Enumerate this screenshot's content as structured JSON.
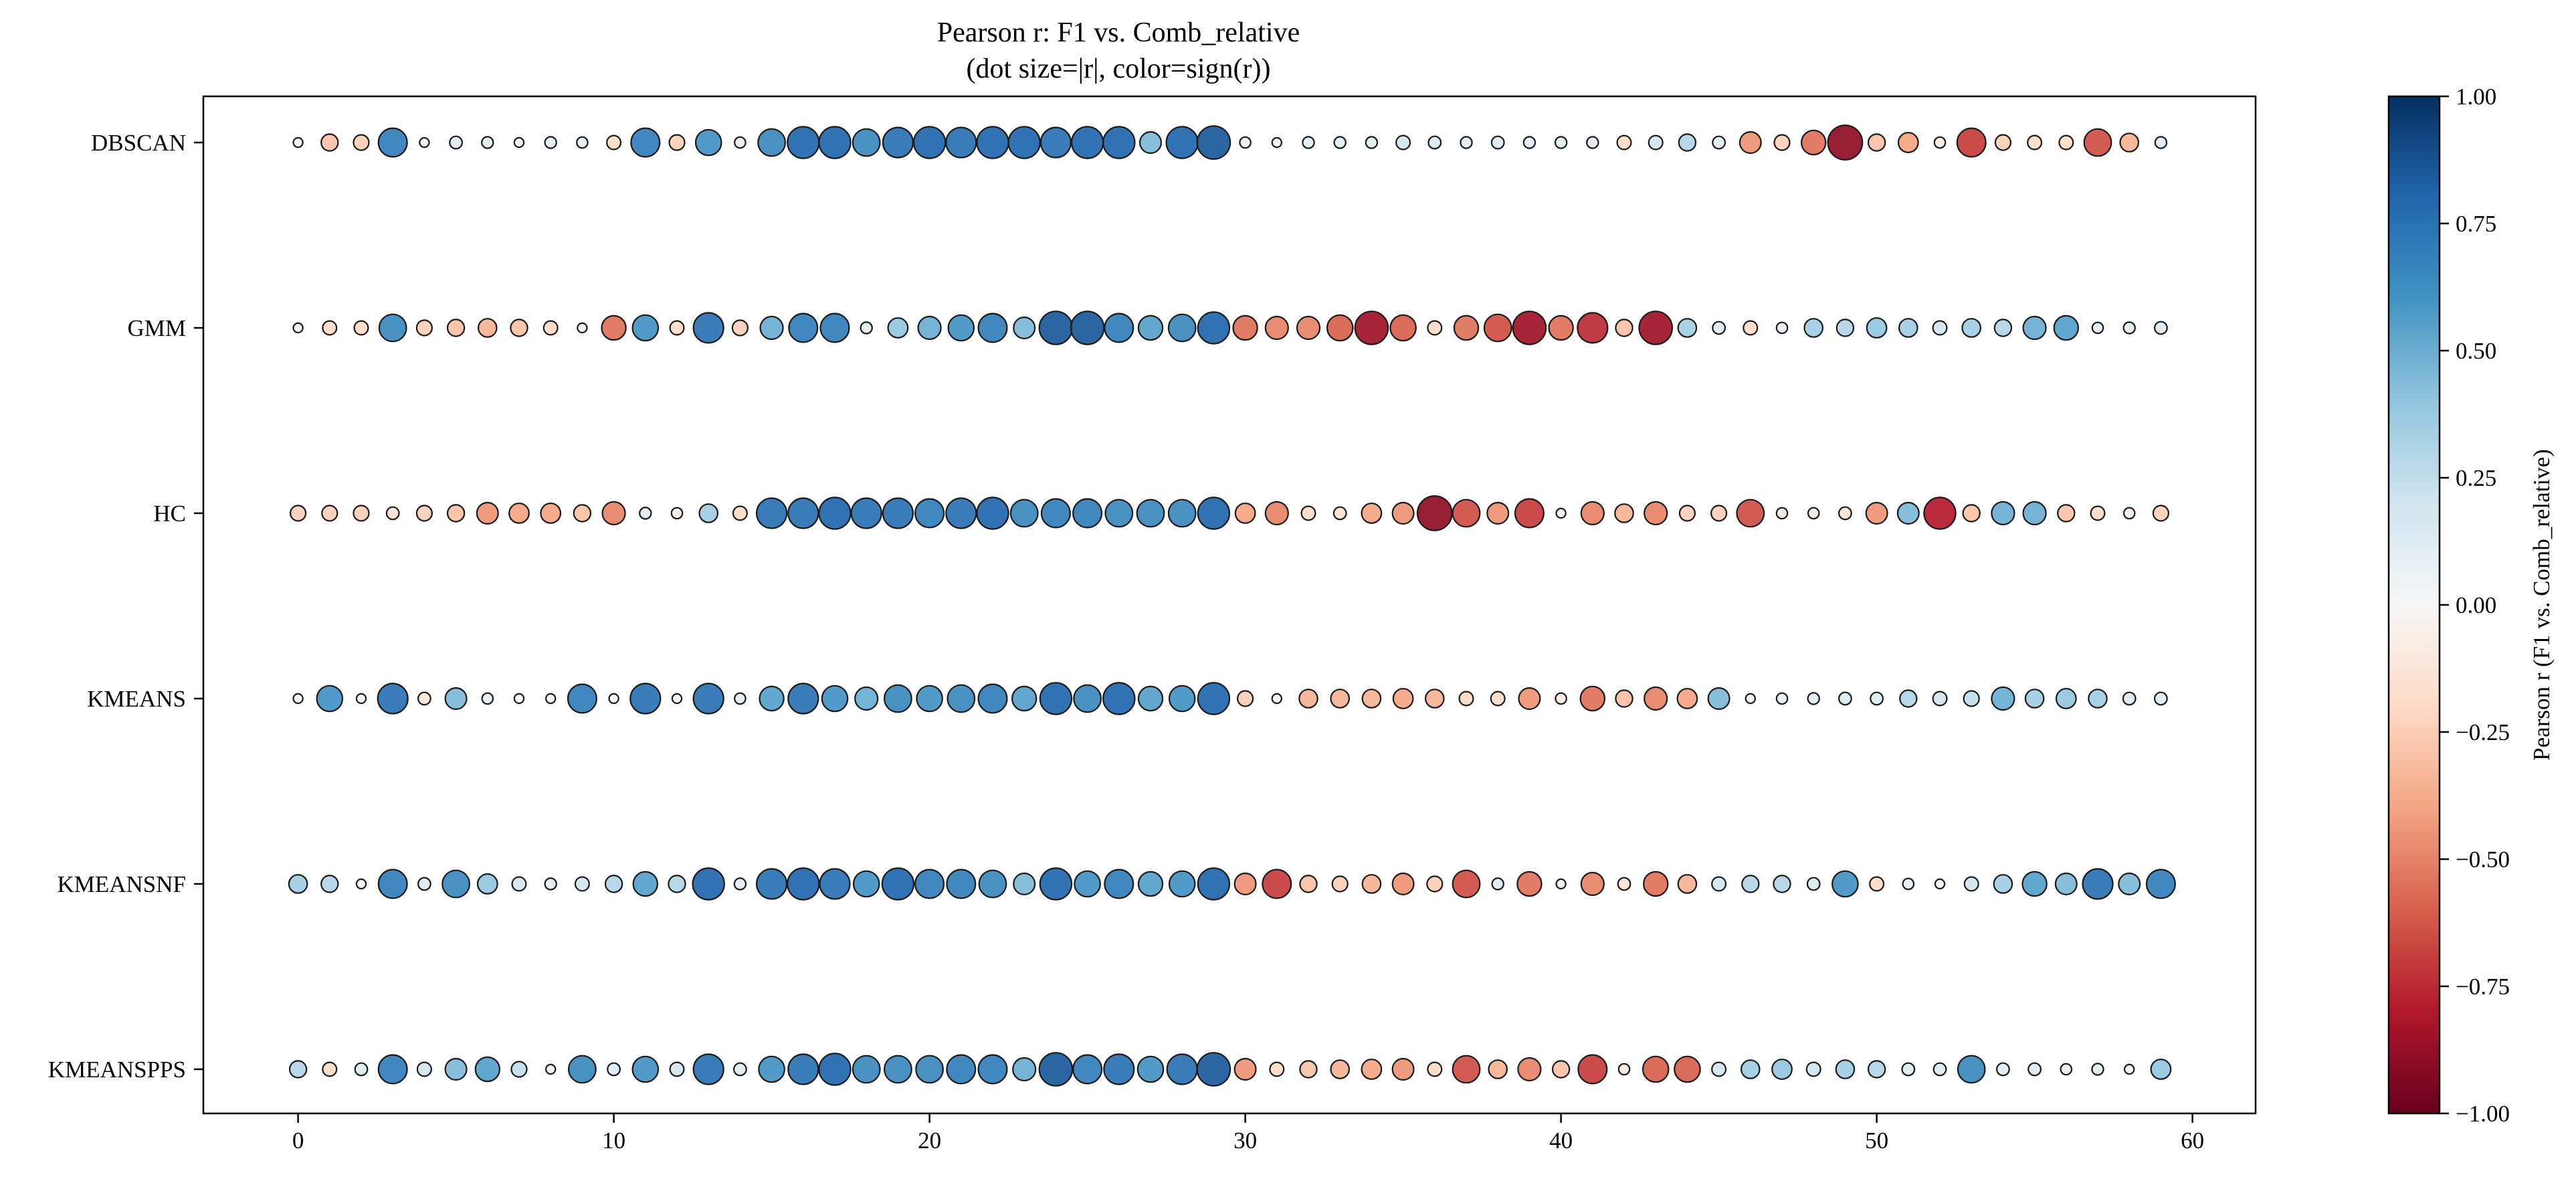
{
  "chart_data": {
    "type": "scatter",
    "title": "Pearson r: F1 vs. Comb_relative",
    "subtitle": "(dot size=|r|, color=sign(r))",
    "x_ticks": [
      0,
      10,
      20,
      30,
      40,
      50,
      60
    ],
    "xlim": [
      -3,
      62
    ],
    "categories": [
      "DBSCAN",
      "GMM",
      "HC",
      "KMEANS",
      "KMEANSNF",
      "KMEANSPPS"
    ],
    "x": [
      0,
      1,
      2,
      3,
      4,
      5,
      6,
      7,
      8,
      9,
      10,
      11,
      12,
      13,
      14,
      15,
      16,
      17,
      18,
      19,
      20,
      21,
      22,
      23,
      24,
      25,
      26,
      27,
      28,
      29,
      30,
      31,
      32,
      33,
      34,
      35,
      36,
      37,
      38,
      39,
      40,
      41,
      42,
      43,
      44,
      45,
      46,
      47,
      48,
      49,
      50,
      51,
      52,
      53,
      54,
      55,
      56,
      57,
      58,
      59
    ],
    "series": [
      {
        "name": "DBSCAN",
        "values": [
          0.05,
          -0.3,
          -0.25,
          0.7,
          0.05,
          0.15,
          0.12,
          0.05,
          0.12,
          0.1,
          -0.2,
          0.7,
          -0.25,
          0.6,
          0.1,
          0.65,
          0.8,
          0.8,
          0.65,
          0.75,
          0.8,
          0.75,
          0.8,
          0.8,
          0.75,
          0.8,
          0.8,
          0.45,
          0.8,
          0.85,
          0.1,
          0.05,
          0.12,
          0.12,
          0.12,
          0.2,
          0.15,
          0.12,
          0.15,
          0.12,
          0.12,
          0.12,
          -0.2,
          0.2,
          0.3,
          0.15,
          -0.45,
          -0.25,
          -0.55,
          -0.9,
          -0.3,
          -0.4,
          -0.1,
          -0.7,
          -0.25,
          -0.2,
          -0.2,
          -0.65,
          -0.35,
          0.12
        ]
      },
      {
        "name": "GMM",
        "values": [
          0.05,
          -0.2,
          -0.2,
          0.65,
          -0.25,
          -0.3,
          -0.35,
          -0.3,
          -0.2,
          0.05,
          -0.55,
          0.6,
          -0.2,
          0.75,
          -0.25,
          0.5,
          0.7,
          0.7,
          0.12,
          0.4,
          0.5,
          0.6,
          0.7,
          0.45,
          0.85,
          0.85,
          0.7,
          0.55,
          0.65,
          0.8,
          -0.55,
          -0.5,
          -0.5,
          -0.6,
          -0.85,
          -0.6,
          -0.2,
          -0.55,
          -0.65,
          -0.85,
          -0.55,
          -0.75,
          -0.3,
          -0.85,
          0.35,
          0.15,
          -0.2,
          0.1,
          0.35,
          0.3,
          0.4,
          0.35,
          0.2,
          0.35,
          0.3,
          0.5,
          0.55,
          0.1,
          0.12,
          0.15
        ]
      },
      {
        "name": "HC",
        "values": [
          -0.25,
          -0.25,
          -0.25,
          -0.15,
          -0.25,
          -0.3,
          -0.45,
          -0.4,
          -0.4,
          -0.3,
          -0.5,
          0.12,
          -0.1,
          0.35,
          -0.2,
          0.75,
          0.75,
          0.8,
          0.75,
          0.75,
          0.7,
          0.75,
          0.8,
          0.65,
          0.7,
          0.7,
          0.65,
          0.65,
          0.65,
          0.8,
          -0.4,
          -0.5,
          -0.2,
          -0.15,
          -0.4,
          -0.45,
          -0.9,
          -0.65,
          -0.45,
          -0.7,
          0.05,
          -0.5,
          -0.35,
          -0.5,
          -0.25,
          -0.25,
          -0.65,
          -0.1,
          -0.1,
          -0.15,
          -0.45,
          0.45,
          -0.8,
          -0.3,
          0.5,
          0.5,
          -0.3,
          -0.2,
          -0.1,
          -0.25
        ]
      },
      {
        "name": "KMEANS",
        "values": [
          -0.05,
          0.6,
          0.05,
          0.75,
          -0.15,
          0.45,
          0.1,
          0.05,
          0.05,
          0.7,
          0.05,
          0.75,
          -0.05,
          0.75,
          0.1,
          0.55,
          0.75,
          0.6,
          0.5,
          0.65,
          0.6,
          0.65,
          0.7,
          0.55,
          0.8,
          0.65,
          0.8,
          0.55,
          0.6,
          0.8,
          -0.25,
          0.05,
          -0.35,
          -0.35,
          -0.35,
          -0.4,
          -0.35,
          -0.2,
          -0.2,
          -0.45,
          -0.1,
          -0.55,
          -0.3,
          -0.5,
          -0.4,
          0.45,
          0.05,
          0.1,
          0.12,
          0.15,
          0.15,
          0.3,
          0.2,
          0.25,
          0.5,
          0.35,
          0.4,
          0.35,
          0.15,
          0.15
        ]
      },
      {
        "name": "KMEANSNF",
        "values": [
          0.35,
          0.3,
          0.05,
          0.7,
          0.15,
          0.65,
          0.4,
          0.2,
          0.12,
          0.2,
          0.3,
          0.55,
          0.3,
          0.8,
          0.12,
          0.75,
          0.8,
          0.75,
          0.6,
          0.8,
          0.7,
          0.7,
          0.65,
          0.45,
          0.8,
          0.6,
          0.7,
          0.55,
          0.6,
          0.8,
          -0.45,
          -0.7,
          -0.3,
          -0.25,
          -0.35,
          -0.45,
          -0.25,
          -0.65,
          0.12,
          -0.55,
          -0.05,
          -0.5,
          -0.15,
          -0.55,
          -0.35,
          0.2,
          0.3,
          0.3,
          0.15,
          0.6,
          -0.2,
          0.1,
          -0.05,
          0.2,
          0.35,
          0.55,
          0.45,
          0.75,
          0.45,
          0.7
        ]
      },
      {
        "name": "KMEANSPPS",
        "values": [
          0.3,
          -0.2,
          0.15,
          0.7,
          0.2,
          0.45,
          0.55,
          0.25,
          -0.05,
          0.65,
          0.15,
          0.6,
          0.2,
          0.75,
          0.15,
          0.6,
          0.75,
          0.8,
          0.65,
          0.65,
          0.65,
          0.7,
          0.7,
          0.5,
          0.85,
          0.7,
          0.75,
          0.6,
          0.75,
          0.85,
          -0.45,
          -0.2,
          -0.3,
          -0.35,
          -0.4,
          -0.45,
          -0.2,
          -0.65,
          -0.35,
          -0.5,
          -0.3,
          -0.7,
          -0.1,
          -0.6,
          -0.6,
          0.2,
          0.35,
          0.4,
          0.2,
          0.35,
          0.3,
          0.15,
          0.15,
          0.65,
          0.15,
          0.15,
          0.1,
          0.12,
          0.05,
          0.4
        ]
      }
    ],
    "colorbar": {
      "label": "Pearson r (F1 vs. Comb_relative)",
      "ticks": [
        "1.00",
        "0.75",
        "0.50",
        "0.25",
        "0.00",
        "−0.25",
        "−0.50",
        "−0.75",
        "−1.00"
      ],
      "range": [
        -1,
        1
      ],
      "colormap": "RdBu",
      "stops": [
        "#67001f",
        "#b2182b",
        "#d6604d",
        "#f4a582",
        "#fddbc7",
        "#f7f7f7",
        "#d1e5f0",
        "#92c5de",
        "#4393c3",
        "#2166ac",
        "#053061"
      ]
    },
    "grid": false
  }
}
